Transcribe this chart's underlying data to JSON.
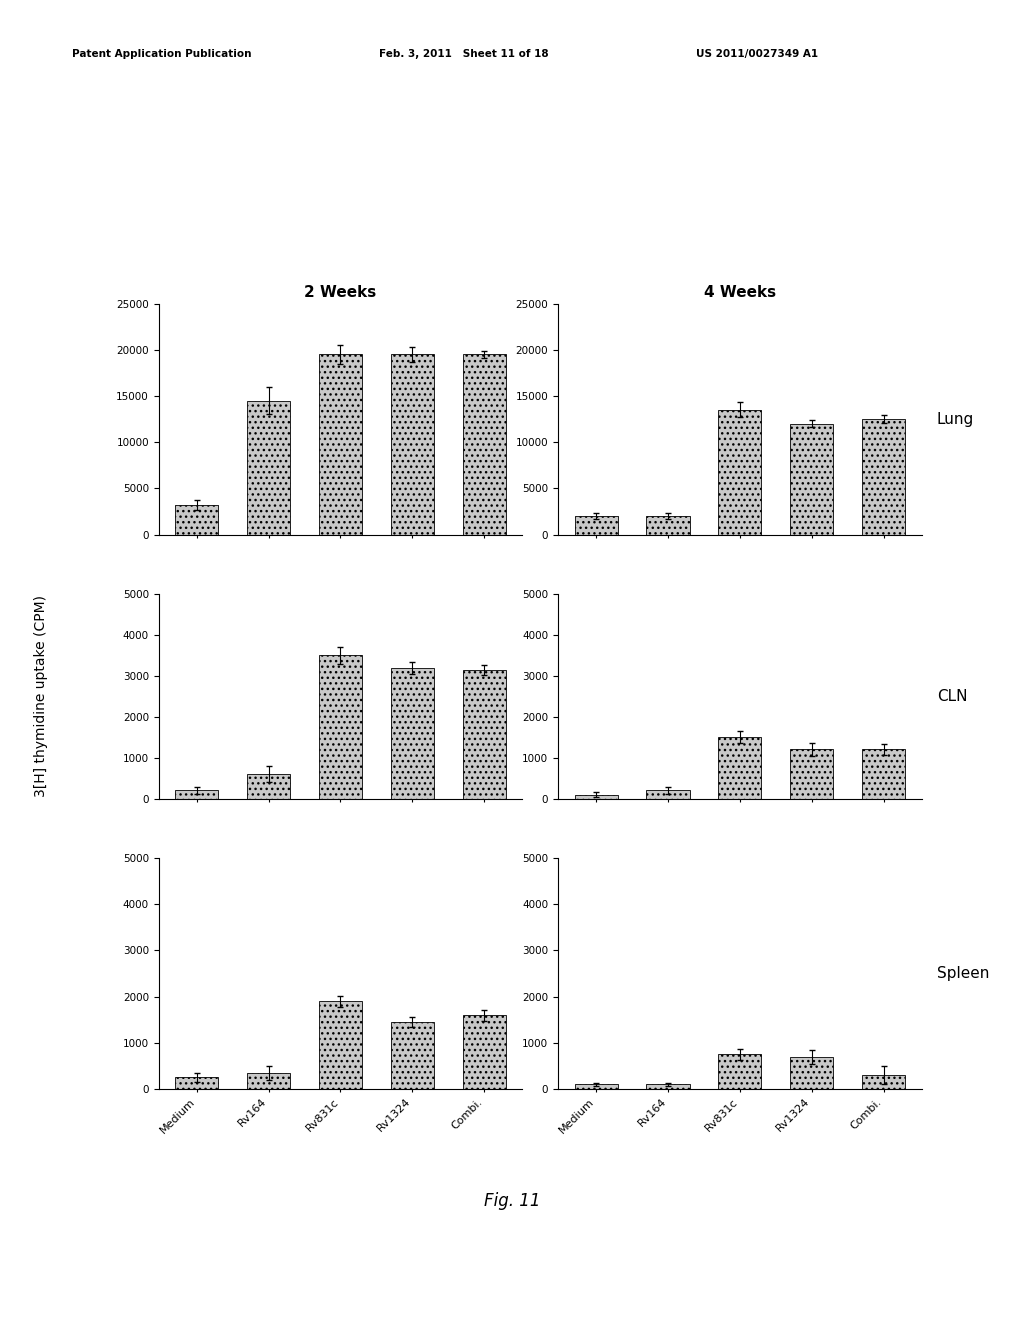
{
  "categories": [
    "Medium",
    "Rv164",
    "Rv831c",
    "Rv1324",
    "Combi."
  ],
  "lung_2w": [
    3200,
    14500,
    19500,
    19500,
    19500
  ],
  "lung_2w_err": [
    500,
    1500,
    1000,
    800,
    400
  ],
  "lung_4w": [
    2000,
    2000,
    13500,
    12000,
    12500
  ],
  "lung_4w_err": [
    300,
    300,
    800,
    400,
    400
  ],
  "cln_2w": [
    200,
    600,
    3500,
    3200,
    3150
  ],
  "cln_2w_err": [
    80,
    200,
    200,
    150,
    120
  ],
  "cln_4w": [
    100,
    200,
    1500,
    1200,
    1200
  ],
  "cln_4w_err": [
    50,
    80,
    150,
    150,
    130
  ],
  "spleen_2w": [
    250,
    350,
    1900,
    1450,
    1600
  ],
  "spleen_2w_err": [
    100,
    150,
    120,
    100,
    120
  ],
  "spleen_4w": [
    100,
    100,
    750,
    700,
    300
  ],
  "spleen_4w_err": [
    30,
    30,
    120,
    150,
    200
  ],
  "header_left": "Patent Application Publication",
  "header_center": "Feb. 3, 2011   Sheet 11 of 18",
  "header_right": "US 2011/0027349 A1",
  "title_2weeks": "2 Weeks",
  "title_4weeks": "4 Weeks",
  "label_lung": "Lung",
  "label_cln": "CLN",
  "label_spleen": "Spleen",
  "ylabel": "3[H] thymidine uptake (CPM)",
  "fig_label": "Fig. 11",
  "bar_color": "#c8c8c8",
  "lung_ylim": [
    0,
    25000
  ],
  "cln_ylim": [
    0,
    5000
  ],
  "spleen_ylim": [
    0,
    5000
  ],
  "lung_yticks": [
    0,
    5000,
    10000,
    15000,
    20000,
    25000
  ],
  "cln_yticks": [
    0,
    1000,
    2000,
    3000,
    4000,
    5000
  ],
  "spleen_yticks": [
    0,
    1000,
    2000,
    3000,
    4000,
    5000
  ]
}
